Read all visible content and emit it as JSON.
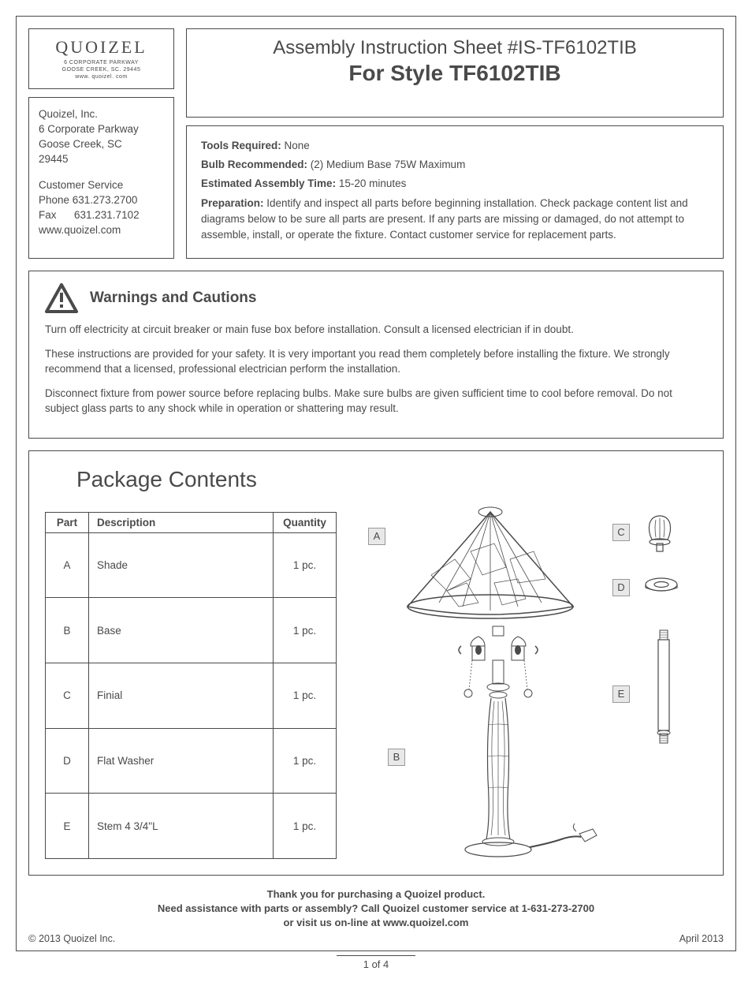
{
  "logo": {
    "brand": "QUOIZEL",
    "addr1": "6 CORPORATE PARKWAY",
    "addr2": "GOOSE CREEK, SC. 29445",
    "addr3": "www. quoizel. com"
  },
  "company": {
    "name": "Quoizel, Inc.",
    "addr1": "6 Corporate Parkway",
    "addr2": "Goose Creek, SC",
    "addr3": "29445",
    "cs_label": "Customer  Service",
    "phone": "Phone  631.273.2700",
    "fax": "Fax      631.231.7102",
    "web": "www.quoizel.com"
  },
  "title": {
    "line1": "Assembly Instruction Sheet #IS-TF6102TIB",
    "line2": "For Style TF6102TIB"
  },
  "info": {
    "tools_label": "Tools Required:",
    "tools_value": " None",
    "bulb_label": "Bulb Recommended:",
    "bulb_value": "  (2) Medium Base 75W Maximum",
    "time_label": "Estimated Assembly Time:",
    "time_value": " 15-20 minutes",
    "prep_label": "Preparation:",
    "prep_value": " Identify and inspect all parts before beginning installation. Check package content list and diagrams below to be sure all parts are present. If any parts are missing or damaged, do not attempt to assemble, install, or operate the fixture. Contact customer service for replacement parts."
  },
  "warnings": {
    "title": "Warnings and Cautions",
    "p1": "Turn off electricity at circuit breaker or main fuse box before installation. Consult a licensed electrician if in doubt.",
    "p2": "These instructions are provided for your safety. It is very important you read them completely before installing the fixture. We strongly recommend that a licensed, professional electrician perform the installation.",
    "p3": "Disconnect fixture from power source before replacing bulbs. Make sure bulbs are given sufficient time to cool before removal. Do not subject glass parts to any shock while in operation or shattering may result."
  },
  "package": {
    "title": "Package Contents",
    "headers": [
      "Part",
      "Description",
      "Quantity"
    ],
    "rows": [
      [
        "A",
        "Shade",
        "1 pc."
      ],
      [
        "B",
        "Base",
        "1 pc."
      ],
      [
        "C",
        "Finial",
        "1 pc."
      ],
      [
        "D",
        "Flat Washer",
        "1 pc."
      ],
      [
        "E",
        "Stem 4 3/4\"L",
        "1 pc."
      ]
    ],
    "labels": {
      "A": "A",
      "B": "B",
      "C": "C",
      "D": "D",
      "E": "E"
    }
  },
  "footer": {
    "thanks": "Thank you for purchasing a Quoizel product.",
    "assist": "Need assistance with parts or assembly? Call Quoizel customer service at 1-631-273-2700",
    "visit": "or visit us on-line at www.quoizel.com",
    "copyright": "2013  Quoizel Inc.",
    "date": "April 2013",
    "page": "1 of 4"
  },
  "colors": {
    "text": "#4a4a4a",
    "border": "#4a4a4a",
    "label_bg": "#e8e8e8",
    "background": "#ffffff"
  }
}
